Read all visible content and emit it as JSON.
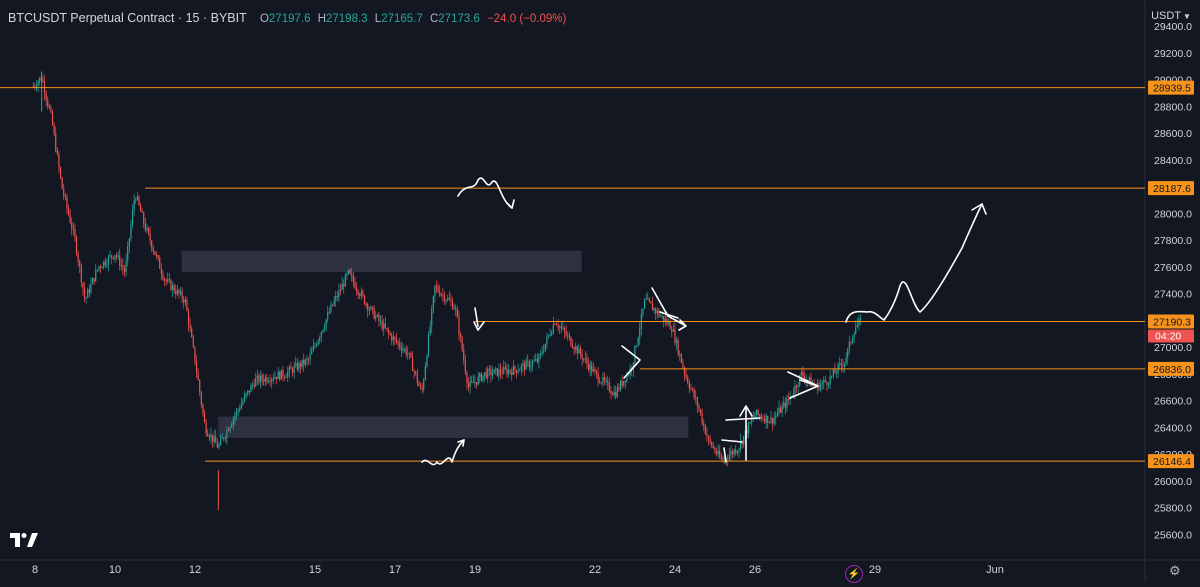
{
  "symbol": {
    "title": "BTCUSDT Perpetual Contract · 15 · BYBIT",
    "open_label": "O",
    "open": "27197.6",
    "high_label": "H",
    "high": "27198.3",
    "low_label": "L",
    "low": "27165.7",
    "close_label": "C",
    "close": "27173.6",
    "change": "−24.0 (−0.09%)"
  },
  "currency_selector": {
    "label": "USDT",
    "icon": "chevron-down-icon"
  },
  "colors": {
    "background": "#131722",
    "up": "#26a69a",
    "down": "#ef5350",
    "level_line": "#f7931a",
    "zone": "#2e3140",
    "drawing": "#ffffff"
  },
  "price_axis": {
    "labels": [
      "29400.0",
      "29200.0",
      "29000.0",
      "28800.0",
      "28600.0",
      "28400.0",
      "28200.0",
      "28000.0",
      "27800.0",
      "27600.0",
      "27400.0",
      "27200.0",
      "27000.0",
      "26800.0",
      "26600.0",
      "26400.0",
      "26200.0",
      "26000.0",
      "25800.0",
      "25600.0"
    ],
    "level_tags": [
      "28939.5",
      "28187.6",
      "27190.3",
      "26836.0",
      "26146.4"
    ],
    "current_price": "27190.3",
    "countdown": "04:20"
  },
  "time_axis": {
    "labels": [
      "8",
      "10",
      "12",
      "15",
      "17",
      "19",
      "22",
      "24",
      "26",
      "29",
      "Jun"
    ]
  },
  "chart_data": {
    "type": "candlestick",
    "symbol": "BTCUSDT",
    "interval": "15",
    "ylim": [
      25520,
      29480
    ],
    "x_ticks": [
      "8",
      "10",
      "12",
      "15",
      "17",
      "19",
      "22",
      "24",
      "26",
      "29",
      "Jun"
    ],
    "path_points": [
      {
        "t": "May 7 20:00",
        "p": 28950
      },
      {
        "t": "May 8 04:00",
        "p": 29020
      },
      {
        "t": "May 8 10:00",
        "p": 28700
      },
      {
        "t": "May 8 16:00",
        "p": 28200
      },
      {
        "t": "May 9 00:00",
        "p": 27800
      },
      {
        "t": "May 9 06:00",
        "p": 27350
      },
      {
        "t": "May 9 14:00",
        "p": 27600
      },
      {
        "t": "May 10 00:00",
        "p": 27700
      },
      {
        "t": "May 10 06:00",
        "p": 27560
      },
      {
        "t": "May 10 12:00",
        "p": 28150
      },
      {
        "t": "May 10 18:00",
        "p": 27900
      },
      {
        "t": "May 11 06:00",
        "p": 27500
      },
      {
        "t": "May 11 18:00",
        "p": 27350
      },
      {
        "t": "May 12 00:00",
        "p": 26900
      },
      {
        "t": "May 12 06:00",
        "p": 26400
      },
      {
        "t": "May 12 14:00",
        "p": 26250
      },
      {
        "t": "May 12 22:00",
        "p": 26450
      },
      {
        "t": "May 13 12:00",
        "p": 26750
      },
      {
        "t": "May 14 06:00",
        "p": 26800
      },
      {
        "t": "May 14 20:00",
        "p": 26900
      },
      {
        "t": "May 15 10:00",
        "p": 27300
      },
      {
        "t": "May 15 20:00",
        "p": 27550
      },
      {
        "t": "May 16 08:00",
        "p": 27300
      },
      {
        "t": "May 16 20:00",
        "p": 27100
      },
      {
        "t": "May 17 08:00",
        "p": 26950
      },
      {
        "t": "May 17 16:00",
        "p": 26650
      },
      {
        "t": "May 18 00:00",
        "p": 27450
      },
      {
        "t": "May 18 12:00",
        "p": 27300
      },
      {
        "t": "May 18 20:00",
        "p": 26700
      },
      {
        "t": "May 19 06:00",
        "p": 26800
      },
      {
        "t": "May 20 00:00",
        "p": 26830
      },
      {
        "t": "May 20 14:00",
        "p": 26900
      },
      {
        "t": "May 21 00:00",
        "p": 27200
      },
      {
        "t": "May 21 12:00",
        "p": 27000
      },
      {
        "t": "May 22 00:00",
        "p": 26800
      },
      {
        "t": "May 22 12:00",
        "p": 26650
      },
      {
        "t": "May 22 22:00",
        "p": 26850
      },
      {
        "t": "May 23 06:00",
        "p": 27350
      },
      {
        "t": "May 23 14:00",
        "p": 27250
      },
      {
        "t": "May 23 22:00",
        "p": 27150
      },
      {
        "t": "May 24 06:00",
        "p": 26800
      },
      {
        "t": "May 24 14:00",
        "p": 26550
      },
      {
        "t": "May 24 20:00",
        "p": 26300
      },
      {
        "t": "May 25 04:00",
        "p": 26150
      },
      {
        "t": "May 25 14:00",
        "p": 26250
      },
      {
        "t": "May 26 00:00",
        "p": 26500
      },
      {
        "t": "May 26 10:00",
        "p": 26450
      },
      {
        "t": "May 26 20:00",
        "p": 26600
      },
      {
        "t": "May 27 04:00",
        "p": 26800
      },
      {
        "t": "May 27 12:00",
        "p": 26700
      },
      {
        "t": "May 27 20:00",
        "p": 26750
      },
      {
        "t": "May 28 06:00",
        "p": 26900
      },
      {
        "t": "May 28 12:00",
        "p": 27150
      },
      {
        "t": "May 28 16:00",
        "p": 27190
      }
    ],
    "extremes": {
      "high": {
        "t": "May 8 04:00",
        "p": 29060
      },
      "low": {
        "t": "May 12 14:00",
        "p": 25780
      }
    },
    "horizontal_levels": [
      28939.5,
      28187.6,
      27190.3,
      26836.0,
      26146.4
    ],
    "zones": [
      {
        "from_t": "May 11 16:00",
        "to_t": "May 21 16:00",
        "top": 27720,
        "bottom": 27560
      },
      {
        "from_t": "May 12 14:00",
        "to_t": "May 24 08:00",
        "top": 26480,
        "bottom": 26320
      }
    ],
    "projection": [
      {
        "t": "May 28 16:00",
        "p": 27190
      },
      {
        "t": "May 29 00:00",
        "p": 27200
      },
      {
        "t": "May 29 12:00",
        "p": 27450
      },
      {
        "t": "May 30 00:00",
        "p": 27200
      },
      {
        "t": "May 30 12:00",
        "p": 27650
      },
      {
        "t": "May 31 00:00",
        "p": 28100
      }
    ],
    "grid": false
  }
}
